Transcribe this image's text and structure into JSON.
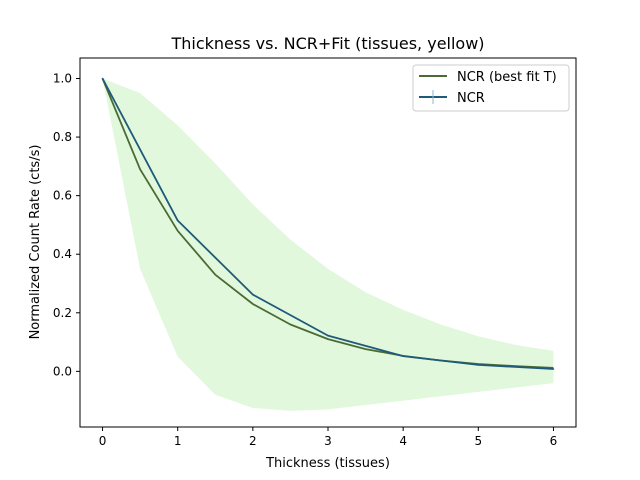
{
  "chart_data": {
    "type": "line",
    "title": "Thickness vs. NCR+Fit (tissues, yellow)",
    "xlabel": "Thickness (tissues)",
    "ylabel": "Normalized Count Rate (cts/s)",
    "xlim": [
      -0.3,
      6.3
    ],
    "ylim": [
      -0.19,
      1.07
    ],
    "x_ticks": [
      0,
      1,
      2,
      3,
      4,
      5,
      6
    ],
    "y_ticks": [
      0.0,
      0.2,
      0.4,
      0.6,
      0.8,
      1.0
    ],
    "grid": false,
    "legend_position": "top-right",
    "series": [
      {
        "name": "NCR (best fit T)",
        "kind": "line",
        "color": "#4a6b34",
        "x": [
          0,
          0.5,
          1,
          1.5,
          2,
          2.5,
          3,
          3.5,
          4,
          4.5,
          5,
          5.5,
          6
        ],
        "y": [
          1.0,
          0.69,
          0.48,
          0.33,
          0.23,
          0.16,
          0.11,
          0.076,
          0.053,
          0.037,
          0.025,
          0.018,
          0.012
        ]
      },
      {
        "name": "NCR",
        "kind": "line_with_errorbars",
        "color": "#1f5a7a",
        "x": [
          0,
          1,
          2,
          3,
          4,
          5,
          6
        ],
        "y": [
          1.0,
          0.515,
          0.262,
          0.122,
          0.052,
          0.022,
          0.008
        ]
      }
    ],
    "band": {
      "color": "#e1f8dc",
      "x": [
        0,
        0.5,
        1,
        1.5,
        2,
        2.5,
        3,
        3.5,
        4,
        4.5,
        5,
        5.5,
        6
      ],
      "upper": [
        1.0,
        0.95,
        0.84,
        0.71,
        0.57,
        0.45,
        0.35,
        0.27,
        0.21,
        0.16,
        0.12,
        0.09,
        0.07
      ],
      "lower": [
        1.0,
        0.35,
        0.05,
        -0.08,
        -0.125,
        -0.135,
        -0.13,
        -0.115,
        -0.1,
        -0.085,
        -0.07,
        -0.055,
        -0.04
      ]
    }
  }
}
